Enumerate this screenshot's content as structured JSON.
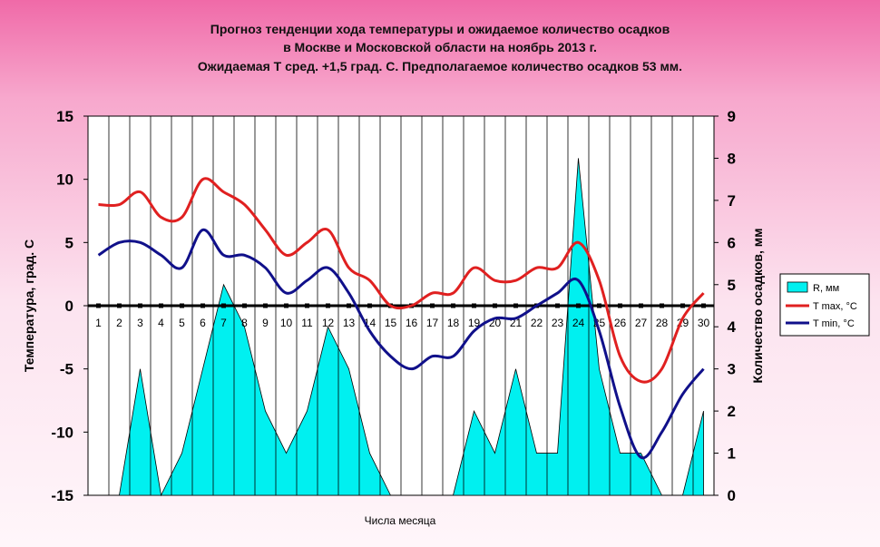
{
  "title_lines": [
    "Прогноз тенденции хода температуры и ожидаемое количество осадков",
    "в Москве и Московской области на ноябрь 2013 г.",
    "Ожидаемая Т сред. +1,5 град. С. Предполагаемое количество осадков 53 мм."
  ],
  "colors": {
    "precip": "#00f0f0",
    "tmax": "#e02020",
    "tmin": "#10108a",
    "grid": "#000000"
  },
  "chart_data": {
    "type": "line",
    "title": "Прогноз тенденции хода температуры и ожидаемое количество осадков в Москве и Московской области на ноябрь 2013 г.",
    "subtitle": "Ожидаемая Т сред. +1,5 град. С. Предполагаемое количество осадков 53 мм.",
    "xlabel": "Числа месяца",
    "ylabel": "Температура, град. С",
    "y2label": "Количество осадков, мм",
    "x": [
      1,
      2,
      3,
      4,
      5,
      6,
      7,
      8,
      9,
      10,
      11,
      12,
      13,
      14,
      15,
      16,
      17,
      18,
      19,
      20,
      21,
      22,
      23,
      24,
      25,
      26,
      27,
      28,
      29,
      30
    ],
    "ylim": [
      -15,
      15
    ],
    "yticks": [
      -15,
      -10,
      -5,
      0,
      5,
      10,
      15
    ],
    "y2lim": [
      0,
      9
    ],
    "y2ticks": [
      0,
      1,
      2,
      3,
      4,
      5,
      6,
      7,
      8,
      9
    ],
    "grid": "vertical",
    "legend_position": "right",
    "series": [
      {
        "name": "R, мм",
        "type": "area",
        "axis": "right",
        "values": [
          0,
          0,
          3,
          0,
          1,
          3,
          5,
          4,
          2,
          1,
          2,
          4,
          3,
          1,
          0,
          0,
          0,
          0,
          2,
          1,
          3,
          1,
          1,
          8,
          3,
          1,
          1,
          0,
          0,
          2
        ]
      },
      {
        "name": "T max, °С",
        "type": "line",
        "axis": "left",
        "values": [
          8,
          8,
          9,
          7,
          7,
          10,
          9,
          8,
          6,
          4,
          5,
          6,
          3,
          2,
          0,
          0,
          1,
          1,
          3,
          2,
          2,
          3,
          3,
          5,
          2,
          -4,
          -6,
          -5,
          -1,
          1
        ]
      },
      {
        "name": "T min, °С",
        "type": "line",
        "axis": "left",
        "values": [
          4,
          5,
          5,
          4,
          3,
          6,
          4,
          4,
          3,
          1,
          2,
          3,
          1,
          -2,
          -4,
          -5,
          -4,
          -4,
          -2,
          -1,
          -1,
          0,
          1,
          2,
          -2,
          -8,
          -12,
          -10,
          -7,
          -5
        ]
      }
    ]
  }
}
